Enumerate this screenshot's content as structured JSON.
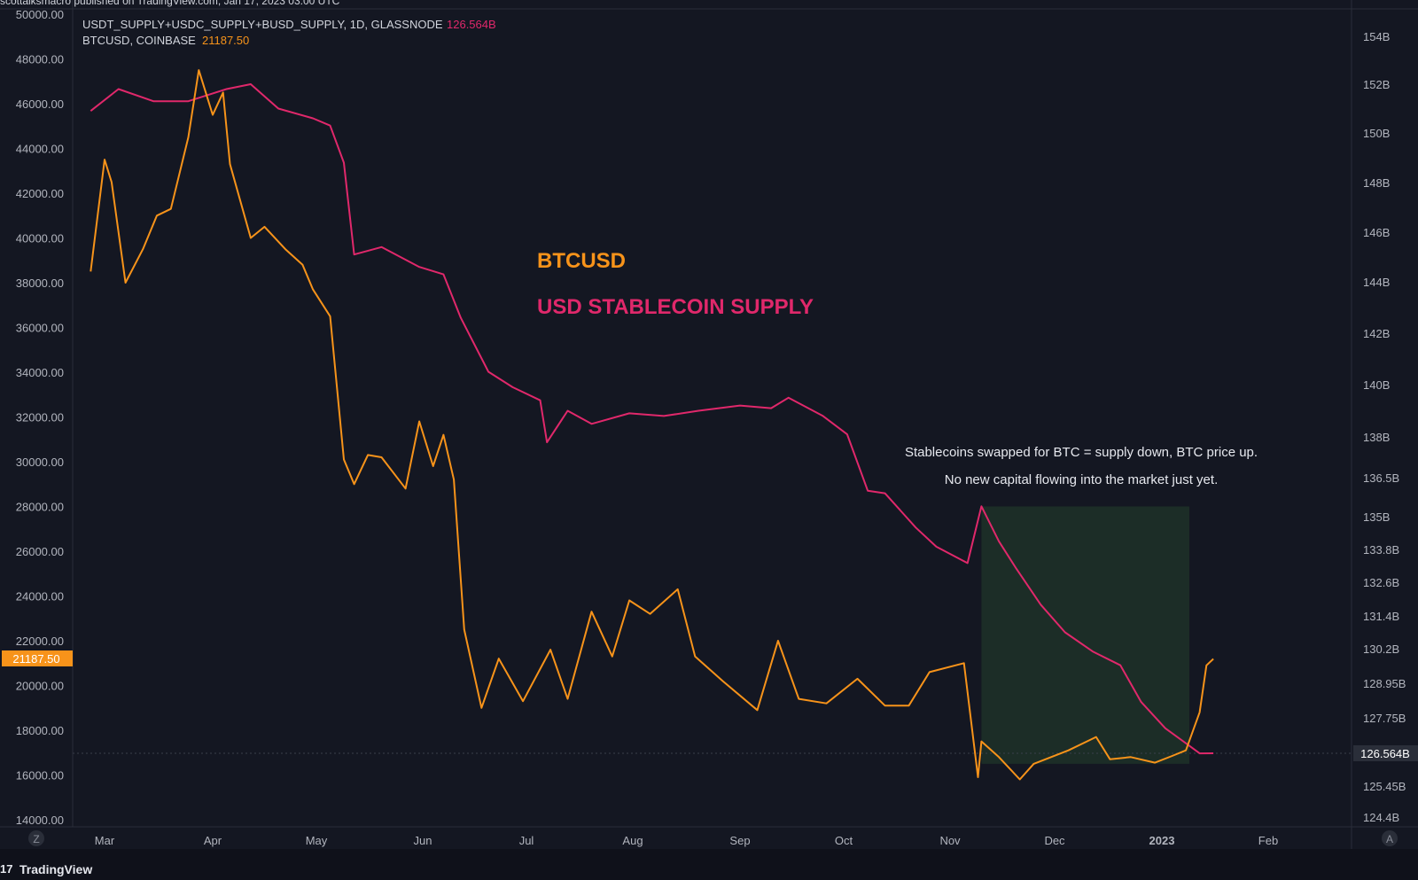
{
  "header": {
    "publish_note": "scottalksmacro published on TradingView.com, Jan 17, 2023 03:00 UTC",
    "series1_title": "USDT_SUPPLY+USDC_SUPPLY+BUSD_SUPPLY, 1D, GLASSNODE",
    "series1_last": "126.564B",
    "series2_title": "BTCUSD, COINBASE",
    "series2_last": "21187.50"
  },
  "overlay": {
    "title_btc": "BTCUSD",
    "title_supply": "USD STABLECOIN SUPPLY",
    "note_line1": "Stablecoins swapped for BTC = supply down, BTC price up.",
    "note_line2": "No new capital flowing into the market just yet."
  },
  "footer": {
    "brand": "TradingView",
    "left_button": "Z",
    "right_button": "A"
  },
  "colors": {
    "background": "#141722",
    "btc": "#f7931a",
    "supply": "#e0286b",
    "highlight": "#1c2e28",
    "grid_text": "#b2b5be"
  },
  "chart_data": {
    "type": "line",
    "x_tick_labels": [
      "Mar",
      "Apr",
      "May",
      "Jun",
      "Jul",
      "Aug",
      "Sep",
      "Oct",
      "Nov",
      "Dec",
      "2023",
      "Feb"
    ],
    "left_axis": {
      "label_values": [
        "50000.00",
        "48000.00",
        "46000.00",
        "44000.00",
        "42000.00",
        "40000.00",
        "38000.00",
        "36000.00",
        "34000.00",
        "32000.00",
        "30000.00",
        "28000.00",
        "26000.00",
        "24000.00",
        "22000.00",
        "20000.00",
        "18000.00",
        "16000.00",
        "14000.00"
      ],
      "ylim": [
        14000,
        50000
      ],
      "last_value_label": "21187.50",
      "last_value": 21187.5
    },
    "right_axis": {
      "label_values": [
        "154B",
        "152B",
        "150B",
        "148B",
        "146B",
        "144B",
        "142B",
        "140B",
        "138B",
        "136.5B",
        "135B",
        "133.8B",
        "132.6B",
        "131.4B",
        "130.2B",
        "128.95B",
        "127.75B",
        "126.564B",
        "125.45B",
        "124.4B"
      ],
      "last_value_label": "126.564B",
      "last_value": 126.564,
      "scale": "log"
    },
    "series": [
      {
        "name": "BTCUSD, COINBASE",
        "axis": "left",
        "points": [
          [
            "2022-02-25",
            38500
          ],
          [
            "2022-03-01",
            43500
          ],
          [
            "2022-03-03",
            42500
          ],
          [
            "2022-03-07",
            38000
          ],
          [
            "2022-03-12",
            39500
          ],
          [
            "2022-03-16",
            41000
          ],
          [
            "2022-03-20",
            41300
          ],
          [
            "2022-03-25",
            44500
          ],
          [
            "2022-03-28",
            47500
          ],
          [
            "2022-04-01",
            45500
          ],
          [
            "2022-04-04",
            46500
          ],
          [
            "2022-04-06",
            43300
          ],
          [
            "2022-04-12",
            40000
          ],
          [
            "2022-04-16",
            40500
          ],
          [
            "2022-04-22",
            39500
          ],
          [
            "2022-04-27",
            38800
          ],
          [
            "2022-04-30",
            37700
          ],
          [
            "2022-05-05",
            36500
          ],
          [
            "2022-05-09",
            30100
          ],
          [
            "2022-05-12",
            29000
          ],
          [
            "2022-05-16",
            30300
          ],
          [
            "2022-05-20",
            30200
          ],
          [
            "2022-05-27",
            28800
          ],
          [
            "2022-05-31",
            31800
          ],
          [
            "2022-06-04",
            29800
          ],
          [
            "2022-06-07",
            31200
          ],
          [
            "2022-06-10",
            29200
          ],
          [
            "2022-06-13",
            22500
          ],
          [
            "2022-06-18",
            19000
          ],
          [
            "2022-06-23",
            21200
          ],
          [
            "2022-06-30",
            19300
          ],
          [
            "2022-07-08",
            21600
          ],
          [
            "2022-07-13",
            19400
          ],
          [
            "2022-07-20",
            23300
          ],
          [
            "2022-07-26",
            21300
          ],
          [
            "2022-07-31",
            23800
          ],
          [
            "2022-08-06",
            23200
          ],
          [
            "2022-08-14",
            24300
          ],
          [
            "2022-08-19",
            21300
          ],
          [
            "2022-08-27",
            20200
          ],
          [
            "2022-09-06",
            18900
          ],
          [
            "2022-09-12",
            22000
          ],
          [
            "2022-09-18",
            19400
          ],
          [
            "2022-09-26",
            19200
          ],
          [
            "2022-10-05",
            20300
          ],
          [
            "2022-10-13",
            19100
          ],
          [
            "2022-10-20",
            19100
          ],
          [
            "2022-10-26",
            20600
          ],
          [
            "2022-11-05",
            21000
          ],
          [
            "2022-11-09",
            15900
          ],
          [
            "2022-11-10",
            17500
          ],
          [
            "2022-11-15",
            16800
          ],
          [
            "2022-11-21",
            15800
          ],
          [
            "2022-11-25",
            16500
          ],
          [
            "2022-12-05",
            17100
          ],
          [
            "2022-12-13",
            17700
          ],
          [
            "2022-12-17",
            16700
          ],
          [
            "2022-12-23",
            16800
          ],
          [
            "2022-12-30",
            16550
          ],
          [
            "2023-01-04",
            16850
          ],
          [
            "2023-01-08",
            17100
          ],
          [
            "2023-01-12",
            18800
          ],
          [
            "2023-01-14",
            20900
          ],
          [
            "2023-01-16",
            21187.5
          ]
        ]
      },
      {
        "name": "USDT_SUPPLY+USDC_SUPPLY+BUSD_SUPPLY, 1D, GLASSNODE",
        "axis": "right",
        "points": [
          [
            "2022-02-25",
            150.9
          ],
          [
            "2022-03-05",
            151.8
          ],
          [
            "2022-03-15",
            151.3
          ],
          [
            "2022-03-25",
            151.3
          ],
          [
            "2022-04-05",
            151.8
          ],
          [
            "2022-04-12",
            152.0
          ],
          [
            "2022-04-20",
            151.0
          ],
          [
            "2022-04-30",
            150.6
          ],
          [
            "2022-05-05",
            150.3
          ],
          [
            "2022-05-09",
            148.8
          ],
          [
            "2022-05-12",
            145.1
          ],
          [
            "2022-05-20",
            145.4
          ],
          [
            "2022-05-31",
            144.6
          ],
          [
            "2022-06-07",
            144.3
          ],
          [
            "2022-06-12",
            142.6
          ],
          [
            "2022-06-20",
            140.5
          ],
          [
            "2022-06-27",
            139.9
          ],
          [
            "2022-07-05",
            139.4
          ],
          [
            "2022-07-07",
            137.8
          ],
          [
            "2022-07-13",
            139.0
          ],
          [
            "2022-07-20",
            138.5
          ],
          [
            "2022-07-31",
            138.9
          ],
          [
            "2022-08-10",
            138.8
          ],
          [
            "2022-08-20",
            139.0
          ],
          [
            "2022-09-01",
            139.2
          ],
          [
            "2022-09-10",
            139.1
          ],
          [
            "2022-09-15",
            139.5
          ],
          [
            "2022-09-25",
            138.8
          ],
          [
            "2022-10-02",
            138.1
          ],
          [
            "2022-10-08",
            136.0
          ],
          [
            "2022-10-13",
            135.9
          ],
          [
            "2022-10-22",
            134.6
          ],
          [
            "2022-10-28",
            133.9
          ],
          [
            "2022-11-06",
            133.3
          ],
          [
            "2022-11-10",
            135.4
          ],
          [
            "2022-11-15",
            134.1
          ],
          [
            "2022-11-20",
            133.1
          ],
          [
            "2022-11-27",
            131.8
          ],
          [
            "2022-12-04",
            130.8
          ],
          [
            "2022-12-12",
            130.1
          ],
          [
            "2022-12-20",
            129.6
          ],
          [
            "2022-12-26",
            128.3
          ],
          [
            "2023-01-02",
            127.4
          ],
          [
            "2023-01-08",
            126.9
          ],
          [
            "2023-01-12",
            126.56
          ],
          [
            "2023-01-16",
            126.564
          ]
        ]
      }
    ],
    "highlight_region": {
      "x_start": "2022-11-10",
      "x_end": "2023-01-09",
      "y_top": 28000,
      "y_bottom": 16500
    },
    "legend": "top-left",
    "grid": false
  }
}
